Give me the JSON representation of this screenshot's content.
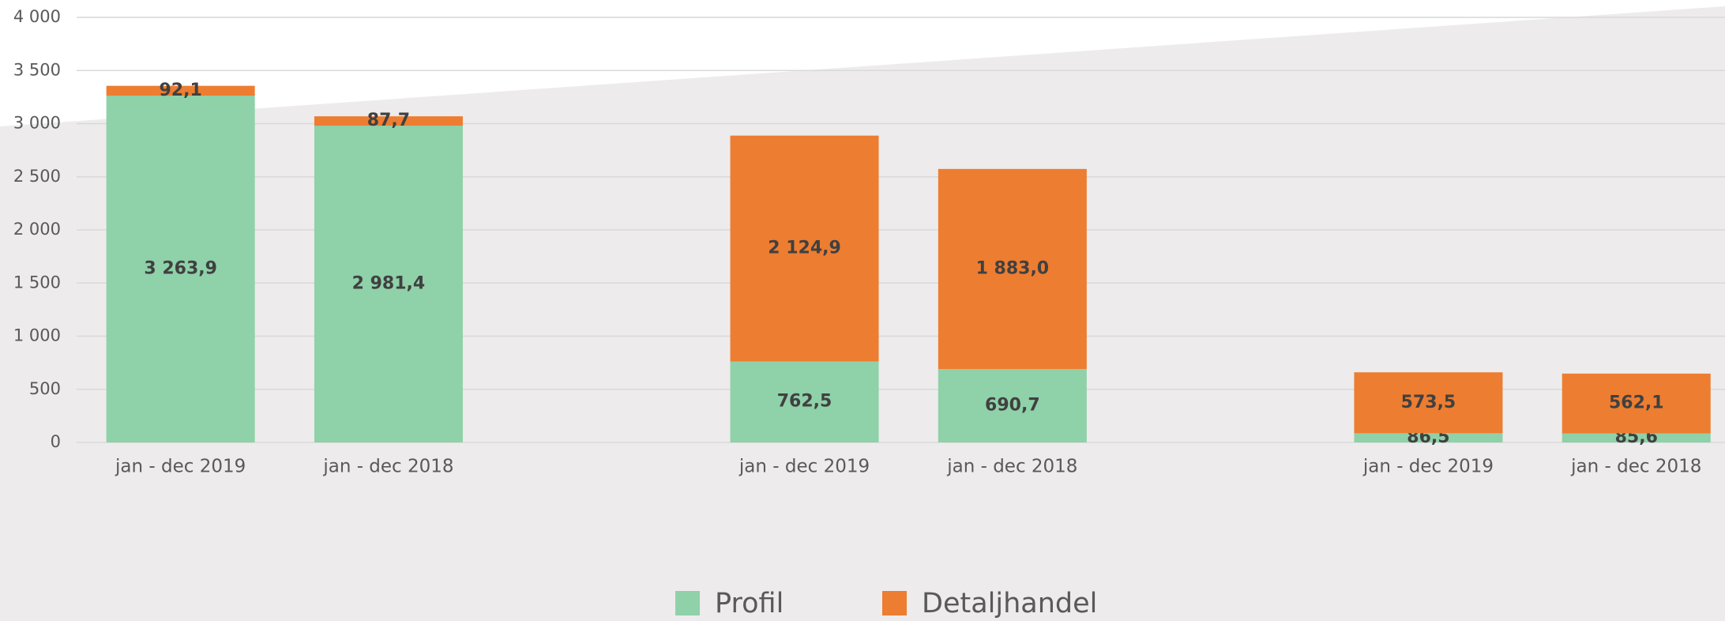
{
  "chart_data": {
    "type": "stacked_bar",
    "categories": [
      "jan - dec 2019",
      "jan - dec 2018",
      null,
      "jan - dec 2019",
      "jan - dec 2018",
      null,
      "jan - dec 2019",
      "jan - dec 2018"
    ],
    "series": [
      {
        "name": "Profil",
        "color": "#8fd1a9",
        "values": [
          3263.9,
          2981.4,
          null,
          762.5,
          690.7,
          null,
          86.5,
          85.6
        ],
        "value_labels": [
          "3 263,9",
          "2 981,4",
          null,
          "762,5",
          "690,7",
          null,
          "86,5",
          "85,6"
        ]
      },
      {
        "name": "Detaljhandel",
        "color": "#ed7d31",
        "values": [
          92.1,
          87.7,
          null,
          2124.9,
          1883.0,
          null,
          573.5,
          562.1
        ],
        "value_labels": [
          "92,1",
          "87,7",
          null,
          "2 124,9",
          "1 883,0",
          null,
          "573,5",
          "562,1"
        ]
      }
    ],
    "ylim": [
      0,
      4000
    ],
    "yticks": [
      0,
      500,
      {
        "value": 1000,
        "label": "1 000"
      },
      {
        "value": 1500,
        "label": "1 500"
      },
      {
        "value": 2000,
        "label": "2 000"
      },
      {
        "value": 2500,
        "label": "2 500"
      },
      {
        "value": 3000,
        "label": "3 000"
      },
      {
        "value": 3500,
        "label": "3 500"
      },
      {
        "value": 4000,
        "label": "4 000"
      }
    ],
    "grid": true,
    "legend": "bottom"
  }
}
